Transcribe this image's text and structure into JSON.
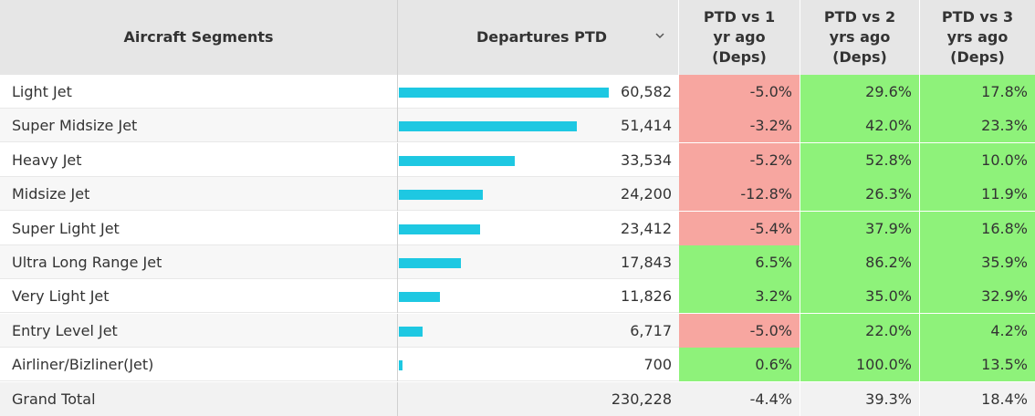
{
  "colors": {
    "bar": "#1ec8e2",
    "positive": "#8ef27a",
    "negative": "#f7a6a0",
    "header_bg": "#e6e6e6"
  },
  "header": {
    "segments": "Aircraft Segments",
    "departures": "Departures PTD",
    "sort_icon": "chevron-down-icon",
    "col1": [
      "PTD vs 1",
      "yr ago",
      "(Deps)"
    ],
    "col2": [
      "PTD vs 2",
      "yrs ago",
      "(Deps)"
    ],
    "col3": [
      "PTD vs 3",
      "yrs ago",
      "(Deps)"
    ]
  },
  "chart_data": {
    "type": "table",
    "bar_max": 60582,
    "columns": [
      "Aircraft Segments",
      "Departures PTD",
      "PTD vs 1 yr ago (Deps)",
      "PTD vs 2 yrs ago (Deps)",
      "PTD vs 3 yrs ago (Deps)"
    ],
    "rows": [
      {
        "segment": "Light Jet",
        "departures": 60582,
        "departures_label": "60,582",
        "vs1": "-5.0%",
        "vs2": "29.6%",
        "vs3": "17.8%"
      },
      {
        "segment": "Super Midsize Jet",
        "departures": 51414,
        "departures_label": "51,414",
        "vs1": "-3.2%",
        "vs2": "42.0%",
        "vs3": "23.3%"
      },
      {
        "segment": "Heavy Jet",
        "departures": 33534,
        "departures_label": "33,534",
        "vs1": "-5.2%",
        "vs2": "52.8%",
        "vs3": "10.0%"
      },
      {
        "segment": "Midsize Jet",
        "departures": 24200,
        "departures_label": "24,200",
        "vs1": "-12.8%",
        "vs2": "26.3%",
        "vs3": "11.9%"
      },
      {
        "segment": "Super Light Jet",
        "departures": 23412,
        "departures_label": "23,412",
        "vs1": "-5.4%",
        "vs2": "37.9%",
        "vs3": "16.8%"
      },
      {
        "segment": "Ultra Long Range Jet",
        "departures": 17843,
        "departures_label": "17,843",
        "vs1": "6.5%",
        "vs2": "86.2%",
        "vs3": "35.9%"
      },
      {
        "segment": "Very Light Jet",
        "departures": 11826,
        "departures_label": "11,826",
        "vs1": "3.2%",
        "vs2": "35.0%",
        "vs3": "32.9%"
      },
      {
        "segment": "Entry Level Jet",
        "departures": 6717,
        "departures_label": "6,717",
        "vs1": "-5.0%",
        "vs2": "22.0%",
        "vs3": "4.2%"
      },
      {
        "segment": "Airliner/Bizliner(Jet)",
        "departures": 700,
        "departures_label": "700",
        "vs1": "0.6%",
        "vs2": "100.0%",
        "vs3": "13.5%"
      }
    ],
    "total": {
      "segment": "Grand Total",
      "departures_label": "230,228",
      "vs1": "-4.4%",
      "vs2": "39.3%",
      "vs3": "18.4%"
    }
  }
}
